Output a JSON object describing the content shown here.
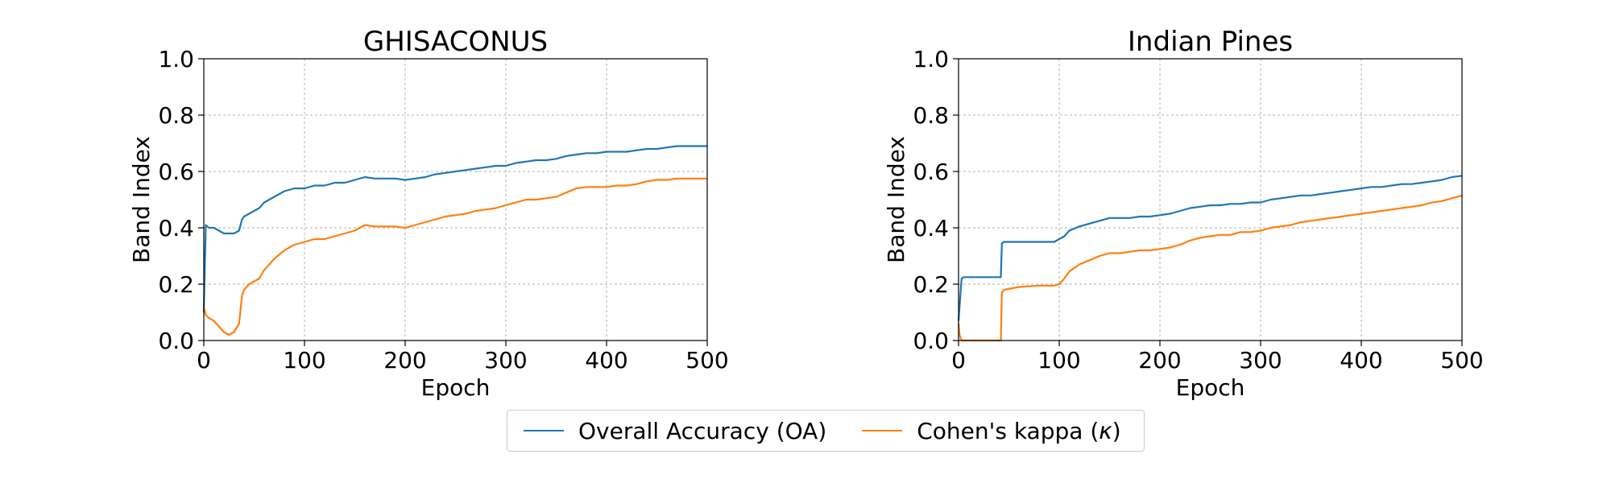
{
  "colors": {
    "oa": "#1f77b4",
    "kappa": "#ff7f0e",
    "grid": "#b0b0b0"
  },
  "legend": {
    "placement": "bottom-center",
    "oa_label": "Overall Accuracy (OA)",
    "kappa_prefix": "Cohen's kappa (",
    "kappa_symbol": "κ",
    "kappa_suffix": ")"
  },
  "chart_data": [
    {
      "type": "line",
      "title": "GHISACONUS",
      "xlabel": "Epoch",
      "ylabel": "Band Index",
      "xlim": [
        0,
        500
      ],
      "ylim": [
        0,
        1.0
      ],
      "xticks": [
        "0",
        "100",
        "200",
        "300",
        "400",
        "500"
      ],
      "yticks": [
        "0.0",
        "0.2",
        "0.4",
        "0.6",
        "0.8",
        "1.0"
      ],
      "grid": true,
      "series": [
        {
          "name": "Overall Accuracy (OA)",
          "color": "#1f77b4",
          "x": [
            0,
            2,
            5,
            10,
            15,
            20,
            25,
            30,
            35,
            38,
            40,
            45,
            50,
            55,
            60,
            70,
            80,
            90,
            100,
            110,
            120,
            130,
            140,
            150,
            160,
            170,
            180,
            190,
            200,
            210,
            220,
            230,
            240,
            250,
            260,
            270,
            280,
            290,
            300,
            310,
            320,
            330,
            340,
            350,
            360,
            370,
            380,
            390,
            400,
            410,
            420,
            430,
            440,
            450,
            460,
            470,
            480,
            490,
            500
          ],
          "y": [
            0.1,
            0.41,
            0.4,
            0.4,
            0.39,
            0.38,
            0.38,
            0.38,
            0.39,
            0.43,
            0.44,
            0.45,
            0.46,
            0.47,
            0.49,
            0.51,
            0.53,
            0.54,
            0.54,
            0.55,
            0.55,
            0.56,
            0.56,
            0.57,
            0.58,
            0.575,
            0.575,
            0.575,
            0.57,
            0.575,
            0.58,
            0.59,
            0.595,
            0.6,
            0.605,
            0.61,
            0.615,
            0.62,
            0.62,
            0.63,
            0.635,
            0.64,
            0.64,
            0.645,
            0.655,
            0.66,
            0.665,
            0.665,
            0.67,
            0.67,
            0.67,
            0.675,
            0.68,
            0.68,
            0.685,
            0.69,
            0.69,
            0.69,
            0.69
          ]
        },
        {
          "name": "Cohen's kappa (κ)",
          "color": "#ff7f0e",
          "x": [
            0,
            2,
            5,
            10,
            15,
            20,
            25,
            30,
            35,
            38,
            40,
            45,
            50,
            55,
            60,
            70,
            80,
            90,
            100,
            110,
            120,
            130,
            140,
            150,
            160,
            170,
            180,
            190,
            200,
            210,
            220,
            230,
            240,
            250,
            260,
            270,
            280,
            290,
            300,
            310,
            320,
            330,
            340,
            350,
            360,
            370,
            380,
            390,
            400,
            410,
            420,
            430,
            440,
            450,
            460,
            470,
            480,
            490,
            500
          ],
          "y": [
            0.12,
            0.09,
            0.08,
            0.07,
            0.05,
            0.03,
            0.02,
            0.03,
            0.06,
            0.16,
            0.18,
            0.2,
            0.21,
            0.22,
            0.25,
            0.29,
            0.32,
            0.34,
            0.35,
            0.36,
            0.36,
            0.37,
            0.38,
            0.39,
            0.41,
            0.405,
            0.405,
            0.405,
            0.4,
            0.41,
            0.42,
            0.43,
            0.44,
            0.445,
            0.45,
            0.46,
            0.465,
            0.47,
            0.48,
            0.49,
            0.5,
            0.5,
            0.505,
            0.51,
            0.525,
            0.54,
            0.545,
            0.545,
            0.545,
            0.55,
            0.55,
            0.555,
            0.565,
            0.57,
            0.57,
            0.575,
            0.575,
            0.575,
            0.575
          ]
        }
      ]
    },
    {
      "type": "line",
      "title": "Indian Pines",
      "xlabel": "Epoch",
      "ylabel": "Band Index",
      "xlim": [
        0,
        500
      ],
      "ylim": [
        0,
        1.0
      ],
      "xticks": [
        "0",
        "100",
        "200",
        "300",
        "400",
        "500"
      ],
      "yticks": [
        "0.0",
        "0.2",
        "0.4",
        "0.6",
        "0.8",
        "1.0"
      ],
      "grid": true,
      "series": [
        {
          "name": "Overall Accuracy (OA)",
          "color": "#1f77b4",
          "x": [
            0,
            3,
            5,
            42,
            43,
            45,
            95,
            100,
            105,
            110,
            120,
            130,
            140,
            150,
            160,
            170,
            180,
            190,
            200,
            210,
            220,
            230,
            240,
            250,
            260,
            270,
            280,
            290,
            300,
            310,
            320,
            330,
            340,
            350,
            360,
            370,
            380,
            390,
            400,
            410,
            420,
            430,
            440,
            450,
            460,
            470,
            480,
            490,
            500
          ],
          "y": [
            0.07,
            0.22,
            0.225,
            0.225,
            0.345,
            0.35,
            0.35,
            0.36,
            0.37,
            0.39,
            0.405,
            0.415,
            0.425,
            0.435,
            0.435,
            0.435,
            0.44,
            0.44,
            0.445,
            0.45,
            0.46,
            0.47,
            0.475,
            0.48,
            0.48,
            0.485,
            0.485,
            0.49,
            0.49,
            0.5,
            0.505,
            0.51,
            0.515,
            0.515,
            0.52,
            0.525,
            0.53,
            0.535,
            0.54,
            0.545,
            0.545,
            0.55,
            0.555,
            0.555,
            0.56,
            0.565,
            0.57,
            0.58,
            0.585
          ]
        },
        {
          "name": "Cohen's kappa (κ)",
          "color": "#ff7f0e",
          "x": [
            0,
            1,
            3,
            42,
            43,
            45,
            60,
            80,
            95,
            100,
            105,
            110,
            120,
            130,
            140,
            150,
            160,
            170,
            180,
            190,
            200,
            210,
            220,
            230,
            240,
            250,
            260,
            270,
            280,
            290,
            300,
            310,
            320,
            330,
            340,
            350,
            360,
            370,
            380,
            390,
            400,
            410,
            420,
            430,
            440,
            450,
            460,
            470,
            480,
            490,
            500
          ],
          "y": [
            0.06,
            0.02,
            0.0,
            0.0,
            0.17,
            0.18,
            0.19,
            0.195,
            0.195,
            0.2,
            0.22,
            0.245,
            0.27,
            0.285,
            0.3,
            0.31,
            0.31,
            0.315,
            0.32,
            0.32,
            0.325,
            0.33,
            0.34,
            0.355,
            0.365,
            0.37,
            0.375,
            0.375,
            0.385,
            0.385,
            0.39,
            0.4,
            0.405,
            0.41,
            0.42,
            0.425,
            0.43,
            0.435,
            0.44,
            0.445,
            0.45,
            0.455,
            0.46,
            0.465,
            0.47,
            0.475,
            0.48,
            0.49,
            0.495,
            0.505,
            0.515
          ]
        }
      ]
    }
  ]
}
